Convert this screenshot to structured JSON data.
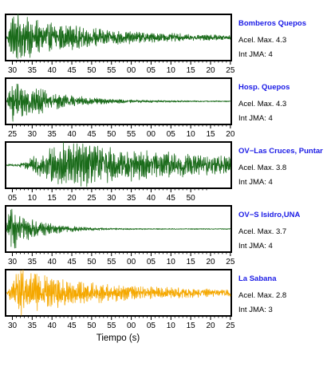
{
  "chart_data": {
    "type": "line",
    "xlabel": "Tiempo (s)",
    "grid": false,
    "panels": [
      {
        "station": "Bomberos Quepos",
        "accel_label": "Acel. Max. 4.3",
        "jma_label": "Int JMA: 4",
        "color": "#1a6b1a",
        "tick_labels": [
          "30",
          "35",
          "40",
          "45",
          "50",
          "55",
          "00",
          "05",
          "10",
          "15",
          "20",
          "25"
        ],
        "envelope": {
          "onset": 0.0,
          "peak": 0.03,
          "decay": 0.35,
          "floor": 0.05,
          "pre": 0.0
        }
      },
      {
        "station": "Hosp. Quepos",
        "accel_label": "Acel. Max. 4.3",
        "jma_label": "Int JMA: 4",
        "color": "#1a6b1a",
        "tick_labels": [
          "25",
          "30",
          "35",
          "40",
          "45",
          "50",
          "55",
          "00",
          "05",
          "10",
          "15",
          "20"
        ],
        "envelope": {
          "onset": 0.0,
          "peak": 0.03,
          "decay": 0.18,
          "floor": 0.02,
          "pre": 0.0
        }
      },
      {
        "station": "OV−Las Cruces, Puntar",
        "accel_label": "Acel. Max. 3.8",
        "jma_label": "Int JMA: 4",
        "color": "#1a6b1a",
        "tick_labels": [
          "05",
          "10",
          "15",
          "20",
          "25",
          "30",
          "35",
          "40",
          "45",
          "50"
        ],
        "envelope": {
          "onset": 0.05,
          "peak": 0.27,
          "decay": 0.6,
          "floor": 0.12,
          "pre": 0.06
        }
      },
      {
        "station": "OV−S Isidro,UNA",
        "accel_label": "Acel. Max. 3.7",
        "jma_label": "Int JMA: 4",
        "color": "#1a6b1a",
        "tick_labels": [
          "30",
          "35",
          "40",
          "45",
          "50",
          "55",
          "00",
          "05",
          "10",
          "15",
          "20",
          "25"
        ],
        "envelope": {
          "onset": 0.0,
          "peak": 0.01,
          "decay": 0.12,
          "floor": 0.02,
          "pre": 0.0
        }
      },
      {
        "station": "La Sabana",
        "accel_label": "Acel. Max. 2.8",
        "jma_label": "Int JMA: 3",
        "color": "#f5a800",
        "tick_labels": [
          "30",
          "35",
          "40",
          "45",
          "50",
          "55",
          "00",
          "05",
          "10",
          "15",
          "20",
          "25"
        ],
        "envelope": {
          "onset": 0.0,
          "peak": 0.05,
          "decay": 0.35,
          "floor": 0.1,
          "pre": 0.0
        }
      }
    ]
  }
}
